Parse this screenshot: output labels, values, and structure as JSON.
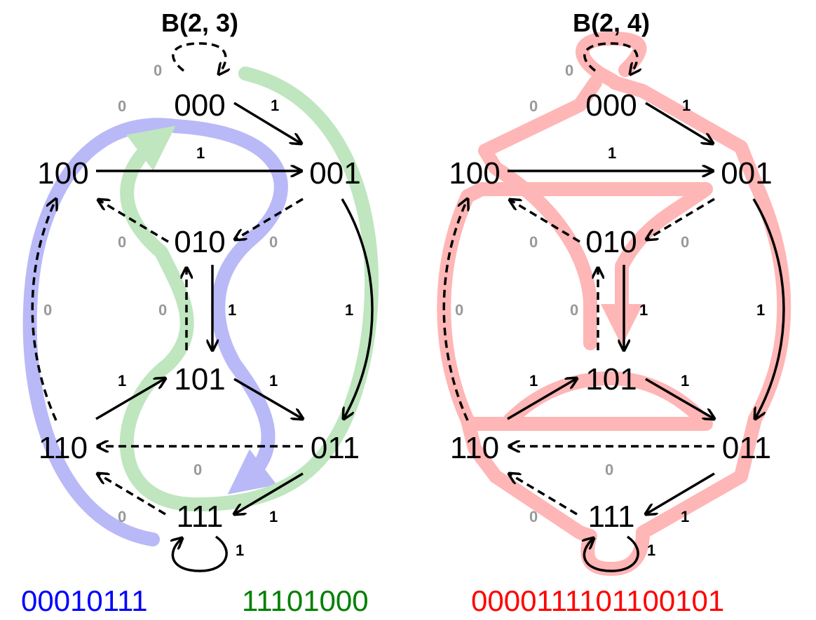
{
  "graphs": [
    {
      "title": "B(2, 3)",
      "nodes": [
        "000",
        "001",
        "010",
        "011",
        "100",
        "101",
        "110",
        "111"
      ],
      "sequences": [
        {
          "text": "00010111",
          "color": "#0000ff"
        },
        {
          "text": "11101000",
          "color": "#008000"
        }
      ]
    },
    {
      "title": "B(2, 4)",
      "nodes": [
        "000",
        "001",
        "010",
        "011",
        "100",
        "101",
        "110",
        "111"
      ],
      "sequences": [
        {
          "text": "0000111101100101",
          "color": "#ff0000"
        }
      ]
    }
  ],
  "edge_labels": {
    "zero": "0",
    "one": "1"
  },
  "colors": {
    "blue_path": "#b9b9f8",
    "green_path": "#bfe6bf",
    "red_path": "#ffb6b6",
    "label_zero": "#999999",
    "label_one": "#000000"
  }
}
